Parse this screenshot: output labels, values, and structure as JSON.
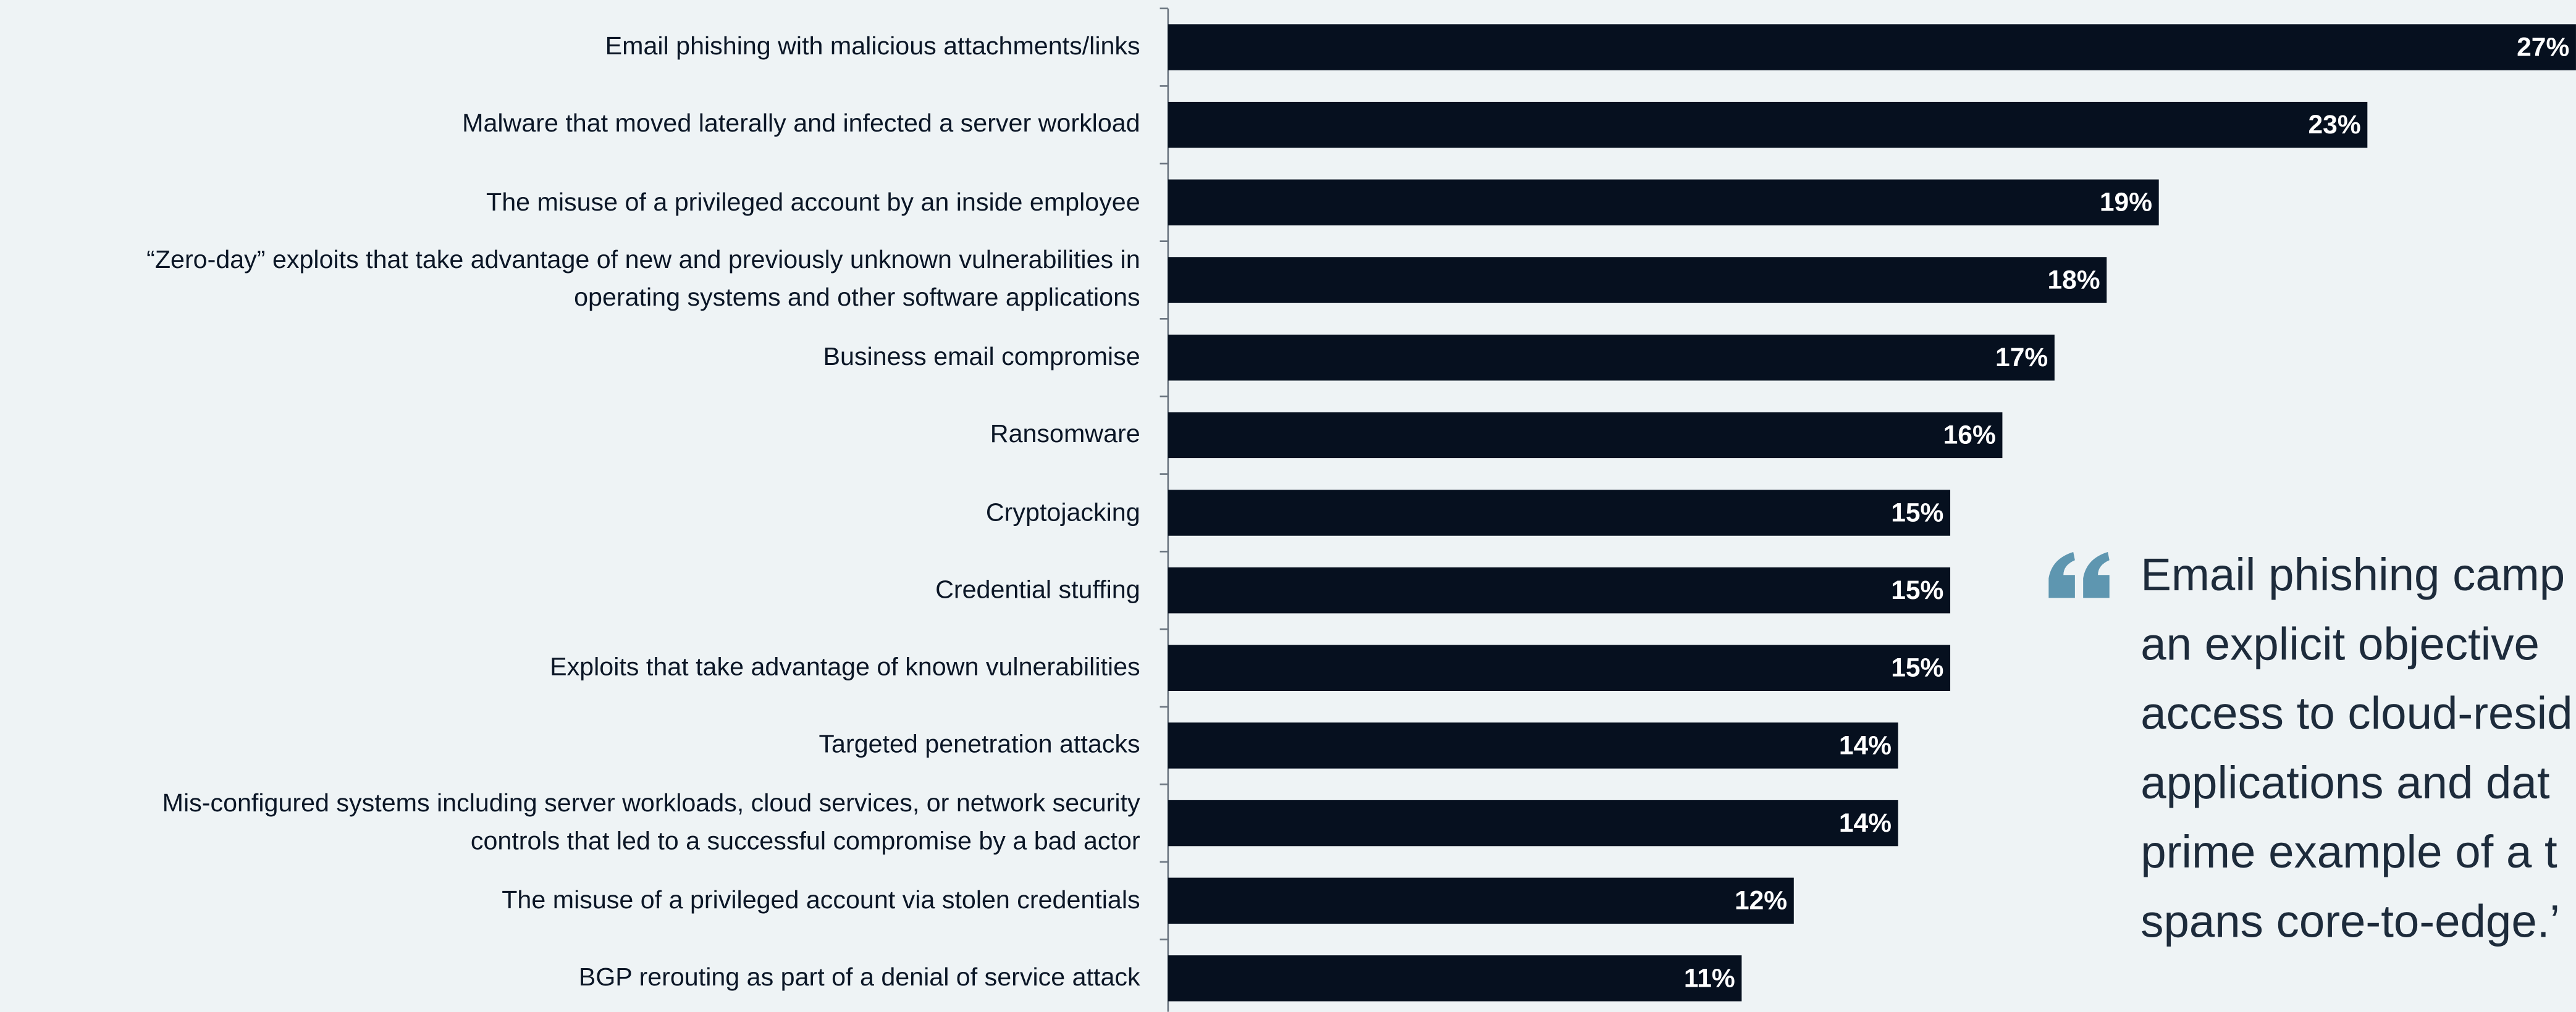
{
  "chart_data": {
    "type": "barh",
    "categories": [
      "Email phishing with malicious attachments/links",
      "Malware that moved laterally and infected a server workload",
      "The misuse of a privileged account by an inside employee",
      "“Zero-day” exploits that take advantage of new and previously unknown vulnerabilities in\noperating systems and other software applications",
      "Business email compromise",
      "Ransomware",
      "Cryptojacking",
      "Credential stuffing",
      "Exploits that take advantage of known vulnerabilities",
      "Targeted penetration attacks",
      "Mis-configured systems including server workloads, cloud services, or network security\ncontrols that led to a successful compromise by a bad actor",
      "The misuse of a privileged account via stolen credentials",
      "BGP rerouting as part of a denial of service attack"
    ],
    "values": [
      27,
      23,
      19,
      18,
      17,
      16,
      15,
      15,
      15,
      14,
      14,
      12,
      11
    ],
    "value_labels": [
      "27%",
      "23%",
      "19%",
      "18%",
      "17%",
      "16%",
      "15%",
      "15%",
      "15%",
      "14%",
      "14%",
      "12%",
      "11%"
    ],
    "color": "#06101f"
  },
  "quote": [
    "Email phishing camp",
    "an explicit objective",
    "access to cloud-resid",
    "applications and dat",
    "prime example of a t",
    "spans core-to-edge.’"
  ]
}
